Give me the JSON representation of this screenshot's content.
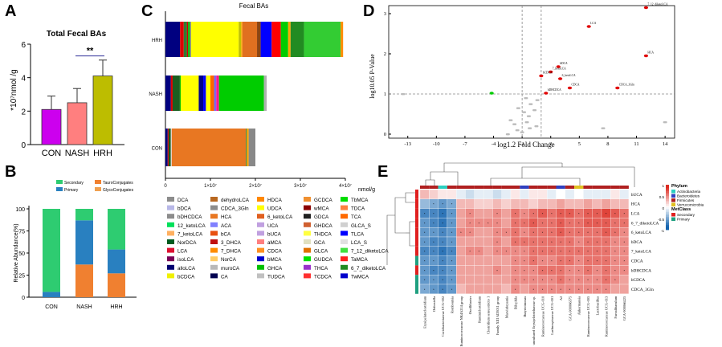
{
  "chart_data": [
    {
      "panel": "A",
      "type": "bar",
      "title": "Total Fecal BAs",
      "ylabel": "*10⁷nmol /g",
      "categories": [
        "CON",
        "NASH",
        "HRH"
      ],
      "values": [
        2.1,
        2.5,
        4.1
      ],
      "errors": [
        0.8,
        0.85,
        0.95
      ],
      "ylim": [
        0,
        6
      ],
      "yticks": [
        "0",
        "2",
        "4",
        "6"
      ],
      "colors": [
        "#cc00ee",
        "#ff7f7f",
        "#bdbd00"
      ],
      "significance": "**"
    },
    {
      "panel": "B",
      "type": "bar",
      "stacked": true,
      "ylabel": "Relative Abundance(%)",
      "categories": [
        "CON",
        "NASH",
        "HRH"
      ],
      "yticks": [
        "0",
        "25",
        "50",
        "75",
        "100"
      ],
      "ylim": [
        0,
        100
      ],
      "legend": [
        {
          "name": "Secondary",
          "color": "#2ecc71"
        },
        {
          "name": "TauroConjugates",
          "color": "#f08030"
        },
        {
          "name": "Primary",
          "color": "#2980c0"
        },
        {
          "name": "GlycoConjugates",
          "color": "#f0a050"
        }
      ],
      "series": [
        {
          "name": "TauroConjugates",
          "values": [
            0,
            37,
            27
          ]
        },
        {
          "name": "Primary",
          "values": [
            6,
            50,
            27
          ]
        },
        {
          "name": "Secondary",
          "values": [
            94,
            13,
            46
          ]
        }
      ]
    },
    {
      "panel": "C",
      "type": "bar",
      "orientation": "horizontal",
      "stacked": true,
      "title": "Fecal BAs",
      "xlabel": "nmol/g",
      "categories": [
        "HRH",
        "NASH",
        "CON"
      ],
      "xticks": [
        "0",
        "1×10⁷",
        "2×10⁷",
        "3×10⁷",
        "4×10⁷"
      ],
      "xlim": [
        0,
        4
      ],
      "series": [
        {
          "name": "HRH",
          "total": 3.95,
          "segments": [
            [
              "#000080",
              0.24
            ],
            [
              "#dd0000",
              0.06
            ],
            [
              "#2e7d32",
              0.05
            ],
            [
              "#cc0000",
              0.02
            ],
            [
              "#00bb00",
              0.03
            ],
            [
              "#888888",
              0.02
            ],
            [
              "#ffff00",
              0.78
            ],
            [
              "#c0c000",
              0.04
            ],
            [
              "#ffa500",
              0.02
            ],
            [
              "#e07020",
              0.24
            ],
            [
              "#8b4513",
              0.06
            ],
            [
              "#0000ff",
              0.18
            ],
            [
              "#ff0000",
              0.15
            ],
            [
              "#00cc00",
              0.12
            ],
            [
              "#ffa500",
              0.04
            ],
            [
              "#228b22",
              0.22
            ],
            [
              "#33cc33",
              0.6
            ],
            [
              "#ff8c00",
              0.04
            ]
          ]
        },
        {
          "name": "NASH",
          "total": 2.25,
          "segments": [
            [
              "#000080",
              0.12
            ],
            [
              "#dd0000",
              0.04
            ],
            [
              "#1b5e20",
              0.16
            ],
            [
              "#00bb00",
              0.02
            ],
            [
              "#ffff00",
              0.4
            ],
            [
              "#00008b",
              0.1
            ],
            [
              "#0000ff",
              0.06
            ],
            [
              "#ffff00",
              0.1
            ],
            [
              "#ff6600",
              0.08
            ],
            [
              "#7b68ee",
              0.05
            ],
            [
              "#ff1493",
              0.06
            ],
            [
              "#00cc00",
              1.0
            ],
            [
              "#b0b0b0",
              0.06
            ]
          ]
        },
        {
          "name": "CON",
          "total": 2.0,
          "segments": [
            [
              "#000080",
              0.05
            ],
            [
              "#dd0000",
              0.02
            ],
            [
              "#1b5e20",
              0.05
            ],
            [
              "#e0e0e0",
              0.02
            ],
            [
              "#e87722",
              1.65
            ],
            [
              "#2e7d32",
              0.02
            ],
            [
              "#ffa500",
              0.04
            ],
            [
              "#888888",
              0.15
            ]
          ]
        }
      ],
      "legend": [
        {
          "name": "DCA",
          "color": "#8c8c8c"
        },
        {
          "name": "bDCA",
          "color": "#b8b8e8"
        },
        {
          "name": "bDHCDCA",
          "color": "#8c8c8c"
        },
        {
          "name": "12_ketoLCA",
          "color": "#00e05a"
        },
        {
          "name": "7_ketoLCA",
          "color": "#ffb060"
        },
        {
          "name": "NorDCA",
          "color": "#005a1e"
        },
        {
          "name": "LCA",
          "color": "#dd1030"
        },
        {
          "name": "isoLCA",
          "color": "#7a0055"
        },
        {
          "name": "alloLCA",
          "color": "#000070"
        },
        {
          "name": "bCDCA",
          "color": "#f0f000"
        },
        {
          "name": "dehydroLCA",
          "color": "#b86820"
        },
        {
          "name": "CDCA_3Gln",
          "color": "#8c8c8c"
        },
        {
          "name": "HCA",
          "color": "#e87722"
        },
        {
          "name": "ACA",
          "color": "#8080ff"
        },
        {
          "name": "bCA",
          "color": "#e85010"
        },
        {
          "name": "3_DHCA",
          "color": "#c01010"
        },
        {
          "name": "7_DHCA",
          "color": "#ff8c00"
        },
        {
          "name": "NorCA",
          "color": "#ffcc66"
        },
        {
          "name": "muroCA",
          "color": "#b8b8b8"
        },
        {
          "name": "CA",
          "color": "#000050"
        },
        {
          "name": "HDCA",
          "color": "#ff8800"
        },
        {
          "name": "UDCA",
          "color": "#ffff00"
        },
        {
          "name": "6_ketoLCA",
          "color": "#e06020"
        },
        {
          "name": "UCA",
          "color": "#c0a0e0"
        },
        {
          "name": "bUCA",
          "color": "#c0a0e0"
        },
        {
          "name": "aMCA",
          "color": "#ff7f7f"
        },
        {
          "name": "CDCA",
          "color": "#ff9020"
        },
        {
          "name": "bMCA",
          "color": "#0000cc"
        },
        {
          "name": "GHCA",
          "color": "#00c000"
        },
        {
          "name": "TUDCA",
          "color": "#c0c0c0"
        },
        {
          "name": "GCDCA",
          "color": "#f09030"
        },
        {
          "name": "wMCA",
          "color": "#8b0000"
        },
        {
          "name": "GDCA",
          "color": "#202020"
        },
        {
          "name": "GHDCA",
          "color": "#d06030"
        },
        {
          "name": "THDCA",
          "color": "#ffff40"
        },
        {
          "name": "GCA",
          "color": "#e0e0c0"
        },
        {
          "name": "GLCA",
          "color": "#e07000"
        },
        {
          "name": "GUDCA",
          "color": "#00e000"
        },
        {
          "name": "THCA",
          "color": "#9932cc"
        },
        {
          "name": "TCDCA",
          "color": "#ff3030"
        },
        {
          "name": "TbMCA",
          "color": "#00dd00"
        },
        {
          "name": "TDCA",
          "color": "#ff8040"
        },
        {
          "name": "TCA",
          "color": "#ff6a00"
        },
        {
          "name": "GLCA_S",
          "color": "#d0d0d0"
        },
        {
          "name": "TLCA",
          "color": "#0000ff"
        },
        {
          "name": "LCA_S",
          "color": "#e0e0e0"
        },
        {
          "name": "7_12_diketoLCA",
          "color": "#40e040"
        },
        {
          "name": "TaMCA",
          "color": "#ff2020"
        },
        {
          "name": "6_7_diketoLCA",
          "color": "#228b22"
        },
        {
          "name": "TwMCA",
          "color": "#0000cc"
        }
      ]
    },
    {
      "panel": "D",
      "type": "scatter",
      "xlabel": "log1.2 Fold Change",
      "ylabel": "log10.05 P-Value",
      "xlim": [
        -15,
        15
      ],
      "ylim": [
        -0.1,
        3.2
      ],
      "xticks": [
        "-13",
        "-10",
        "-7",
        "-4",
        "-1",
        "2",
        "5",
        "8",
        "11",
        "14"
      ],
      "yticks": [
        "0",
        "1",
        "2",
        "3"
      ],
      "points_labeled": [
        {
          "x": 12.0,
          "y": 3.15,
          "label": "7_12_diketoLCA",
          "color": "#e00000"
        },
        {
          "x": 6.0,
          "y": 2.68,
          "label": "LCA",
          "color": "#e00000"
        },
        {
          "x": 12.0,
          "y": 1.95,
          "label": "HCA",
          "color": "#e00000"
        },
        {
          "x": 2.8,
          "y": 1.68,
          "label": "bDCA",
          "color": "#e00000"
        },
        {
          "x": 2.0,
          "y": 1.55,
          "label": "7_ketoLCA",
          "color": "#e00000"
        },
        {
          "x": 1.0,
          "y": 1.45,
          "label": "bCDCA",
          "color": "#e00000"
        },
        {
          "x": 3.0,
          "y": 1.38,
          "label": "6_ketoLCA",
          "color": "#e00000"
        },
        {
          "x": 4.0,
          "y": 1.15,
          "label": "CDCA",
          "color": "#e00000"
        },
        {
          "x": 9.0,
          "y": 1.15,
          "label": "CDCA_3Gln",
          "color": "#e00000"
        },
        {
          "x": 1.5,
          "y": 1.02,
          "label": "bDHCDCA",
          "color": "#e00000"
        },
        {
          "x": -4.2,
          "y": 1.02,
          "label": "",
          "color": "#00cc00"
        }
      ],
      "points_ns": [
        [
          -13.5,
          1.0
        ],
        [
          -1.4,
          0.65
        ],
        [
          -0.8,
          0.55
        ],
        [
          -0.3,
          0.45
        ],
        [
          -2.2,
          0.35
        ],
        [
          -1.8,
          0.25
        ],
        [
          -0.5,
          0.3
        ],
        [
          0.3,
          0.6
        ],
        [
          -0.2,
          0.15
        ],
        [
          -1.0,
          0.05
        ],
        [
          0.5,
          0.2
        ],
        [
          -2.5,
          0.0
        ],
        [
          -1.5,
          0.1
        ],
        [
          7.5,
          0.15
        ],
        [
          14.0,
          0.3
        ],
        [
          -0.1,
          0.75
        ],
        [
          0.6,
          0.85
        ],
        [
          -0.6,
          0.9
        ]
      ],
      "threshold_y": 1.0,
      "threshold_x": [
        -1,
        1
      ]
    },
    {
      "panel": "E",
      "type": "heatmap",
      "rows": [
        "bUCA",
        "HCA",
        "LCA",
        "6_7_diketoLCA",
        "6_ketoLCA",
        "bDCA",
        "7_ketoLCA",
        "CDCA",
        "bDHCDCA",
        "bCDCA",
        "CDCA_3Gln"
      ],
      "row_class": [
        "Secondary",
        "Secondary",
        "Secondary",
        "Secondary",
        "Secondary",
        "Secondary",
        "Secondary",
        "Primary",
        "Secondary",
        "Primary",
        "Primary"
      ],
      "columns": [
        "Erysipelatoclostridium",
        "Dubosiella",
        "Coriobacteriaceae UCG-002",
        "Romboutsia",
        "Ruminococcaceae NK4A214 group",
        "Oscillibacter",
        "Ruminiclostridium",
        "Clostridium sensu stricto 1",
        "Family XIII AD3011 group",
        "Marvinbryantia",
        "Bilophila",
        "Butyricimonas",
        "uncultured Erysipelotrichaceae sp.",
        "Ruminococcaceae UCG-010",
        "Lachnospiraceae UCG-001",
        "A2",
        "GCA-900066575",
        "Akkermansia",
        "Ruminococcaceae UCG-005",
        "Lactobacillus",
        "Ruminococcaceae UCG-013",
        "Faecalibaculum",
        "GCA-900066225"
      ],
      "col_phylum": [
        "Firmicutes",
        "Firmicutes",
        "Actinobacteria",
        "Firmicutes",
        "Firmicutes",
        "Firmicutes",
        "Firmicutes",
        "Firmicutes",
        "Firmicutes",
        "Firmicutes",
        "Firmicutes",
        "Bacteroidetes",
        "Firmicutes",
        "Firmicutes",
        "Firmicutes",
        "Bacteroidetes",
        "Firmicutes",
        "Verrucomicrobia",
        "Firmicutes",
        "Firmicutes",
        "Firmicutes",
        "Firmicutes",
        "Firmicutes"
      ],
      "legend_phylum_title": "Phylum",
      "legend_phylum": [
        {
          "name": "Actinobacteria",
          "color": "#2ad0c0"
        },
        {
          "name": "Bacteroidetes",
          "color": "#3040c0"
        },
        {
          "name": "Firmicutes",
          "color": "#b02020"
        },
        {
          "name": "Verrucomicrobia",
          "color": "#e0c020"
        }
      ],
      "legend_class_title": "MetClass",
      "legend_class": [
        {
          "name": "Secondary",
          "color": "#e02020"
        },
        {
          "name": "Primary",
          "color": "#20a080"
        }
      ],
      "scale_ticks": [
        "1",
        "0.5",
        "0",
        "-0.5",
        "-1"
      ],
      "scale_range": [
        -1,
        1
      ],
      "values": [
        [
          0.3,
          0.2,
          0.1,
          0.1,
          -0.1,
          -0.2,
          -0.1,
          -0.1,
          -0.2,
          -0.1,
          0.1,
          -0.1,
          0.1,
          0.1,
          -0.1,
          0.0,
          -0.1,
          0.0,
          -0.1,
          -0.1,
          -0.1,
          0.1,
          -0.1
        ],
        [
          -0.4,
          -0.5,
          -0.6,
          -0.5,
          0.3,
          0.3,
          0.2,
          0.2,
          0.3,
          0.2,
          0.3,
          0.3,
          0.2,
          0.3,
          0.3,
          0.4,
          0.3,
          0.3,
          0.4,
          0.3,
          0.4,
          0.3,
          0.3
        ],
        [
          -0.7,
          -0.7,
          -0.8,
          -0.6,
          0.4,
          0.5,
          0.4,
          0.4,
          0.5,
          0.4,
          0.6,
          0.5,
          0.6,
          0.7,
          0.6,
          0.7,
          0.7,
          0.6,
          0.7,
          0.7,
          0.8,
          0.7,
          0.6
        ],
        [
          -0.6,
          -0.7,
          -0.8,
          -0.6,
          0.4,
          0.5,
          0.5,
          0.5,
          0.5,
          0.4,
          0.6,
          0.6,
          0.7,
          0.6,
          0.6,
          0.7,
          0.6,
          0.6,
          0.7,
          0.7,
          0.7,
          0.6,
          0.6
        ],
        [
          -0.6,
          -0.6,
          -0.7,
          -0.6,
          0.5,
          0.5,
          0.4,
          0.4,
          0.5,
          0.5,
          0.6,
          0.5,
          0.6,
          0.6,
          0.6,
          0.7,
          0.6,
          0.6,
          0.6,
          0.6,
          0.7,
          0.6,
          0.5
        ],
        [
          -0.6,
          -0.7,
          -0.7,
          -0.6,
          0.4,
          0.4,
          0.4,
          0.4,
          0.5,
          0.4,
          0.6,
          0.6,
          0.6,
          0.6,
          0.6,
          0.6,
          0.6,
          0.5,
          0.6,
          0.6,
          0.6,
          0.5,
          0.5
        ],
        [
          -0.7,
          -0.7,
          -0.8,
          -0.7,
          0.4,
          0.5,
          0.5,
          0.4,
          0.5,
          0.5,
          0.5,
          0.5,
          0.6,
          0.6,
          0.6,
          0.6,
          0.6,
          0.6,
          0.6,
          0.6,
          0.6,
          0.5,
          0.5
        ],
        [
          -0.6,
          -0.6,
          -0.7,
          -0.6,
          0.4,
          0.4,
          0.4,
          0.4,
          0.4,
          0.4,
          0.5,
          0.5,
          0.6,
          0.5,
          0.5,
          0.6,
          0.6,
          0.5,
          0.6,
          0.6,
          0.6,
          0.5,
          0.5
        ],
        [
          -0.6,
          -0.7,
          -0.7,
          -0.6,
          0.4,
          0.4,
          0.4,
          0.4,
          0.5,
          0.4,
          0.5,
          0.5,
          0.5,
          0.6,
          0.6,
          0.6,
          0.5,
          0.5,
          0.6,
          0.5,
          0.6,
          0.5,
          0.5
        ],
        [
          -0.6,
          -0.6,
          -0.7,
          -0.6,
          0.4,
          0.4,
          0.4,
          0.4,
          0.4,
          0.4,
          0.5,
          0.5,
          0.5,
          0.5,
          0.5,
          0.6,
          0.5,
          0.5,
          0.5,
          0.5,
          0.6,
          0.5,
          0.4
        ],
        [
          -0.5,
          -0.6,
          -0.7,
          -0.6,
          0.3,
          0.4,
          0.4,
          0.4,
          0.4,
          0.3,
          0.5,
          0.4,
          0.5,
          0.5,
          0.5,
          0.5,
          0.5,
          0.5,
          0.5,
          0.5,
          0.5,
          0.4,
          0.4
        ]
      ]
    }
  ],
  "panel_labels": {
    "a": "A",
    "b": "B",
    "c": "C",
    "d": "D",
    "e": "E"
  }
}
